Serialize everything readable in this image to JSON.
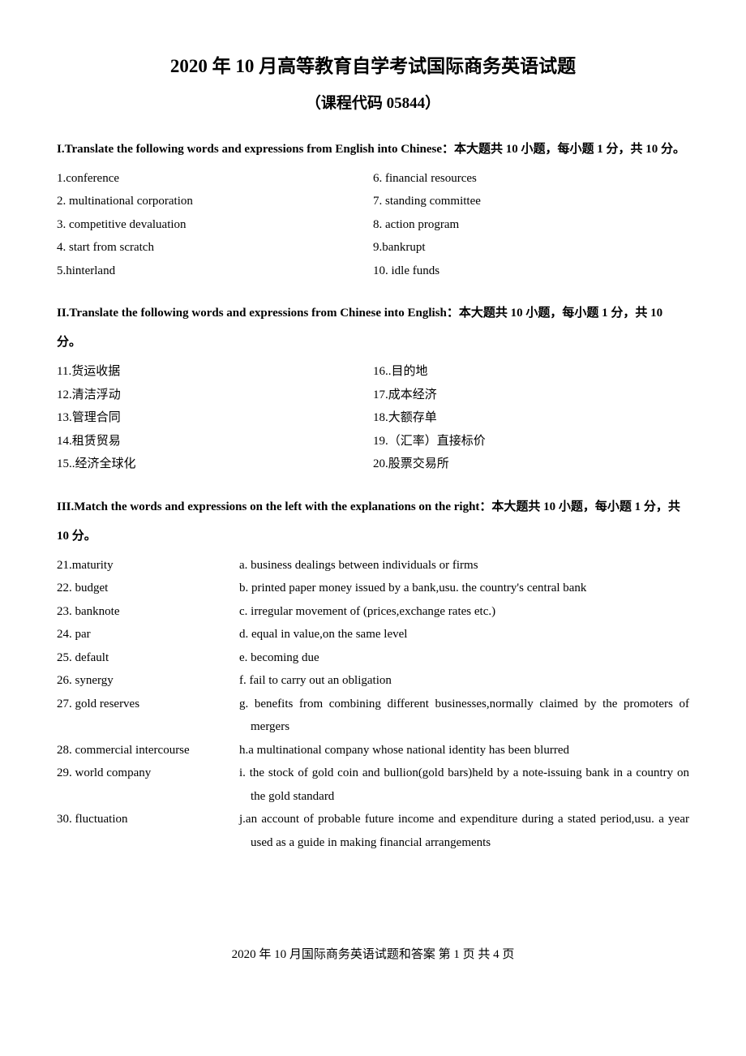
{
  "title": "2020 年 10 月高等教育自学考试国际商务英语试题",
  "subtitle": "（课程代码 05844）",
  "section1": {
    "header": "I.Translate the following words and expressions from English into Chinese：本大题共 10 小题，每小题 1 分，共 10 分。",
    "items": [
      "1.conference",
      "2. multinational corporation",
      "3. competitive devaluation",
      "4. start from scratch",
      "5.hinterland",
      "6. financial resources",
      "7. standing committee",
      "8. action program",
      "9.bankrupt",
      "10. idle funds"
    ]
  },
  "section2": {
    "header": "II.Translate the following words and expressions from Chinese into English：本大题共 10 小题，每小题 1 分，共 10 分。",
    "items": [
      "11.货运收据",
      "12.清洁浮动",
      "13.管理合同",
      "14.租赁贸易",
      "15..经济全球化",
      "16..目的地",
      "17.成本经济",
      "18.大额存单",
      "19.（汇率）直接标价",
      "20.股票交易所"
    ]
  },
  "section3": {
    "header": "III.Match the words and expressions on the left with the explanations on the right：本大题共 10 小题，每小题 1 分，共 10 分。",
    "rows": [
      {
        "left": "21.maturity",
        "right": "a. business dealings between individuals or firms"
      },
      {
        "left": "22. budget",
        "right": "b. printed paper money issued by a bank,usu. the country's central bank"
      },
      {
        "left": "23. banknote",
        "right": "c. irregular movement of (prices,exchange rates etc.)"
      },
      {
        "left": "24. par",
        "right": "d. equal in value,on the same level"
      },
      {
        "left": "25. default",
        "right": "e. becoming due"
      },
      {
        "left": "26. synergy",
        "right": "f. fail to carry out an obligation"
      },
      {
        "left": "27. gold reserves",
        "right": "g. benefits from combining different businesses,normally claimed by the promoters of mergers"
      },
      {
        "left": "28. commercial intercourse",
        "right": "h.a multinational company whose national identity has been blurred"
      },
      {
        "left": "29. world company",
        "right": "i. the stock of gold coin and bullion(gold bars)held by a note-issuing bank in a country on the gold standard"
      },
      {
        "left": "30. fluctuation",
        "right": "j.an account of probable future income and expenditure during a stated period,usu. a year used as a guide in making financial arrangements"
      }
    ]
  },
  "footer": "2020 年 10 月国际商务英语试题和答案 第 1 页 共 4 页"
}
